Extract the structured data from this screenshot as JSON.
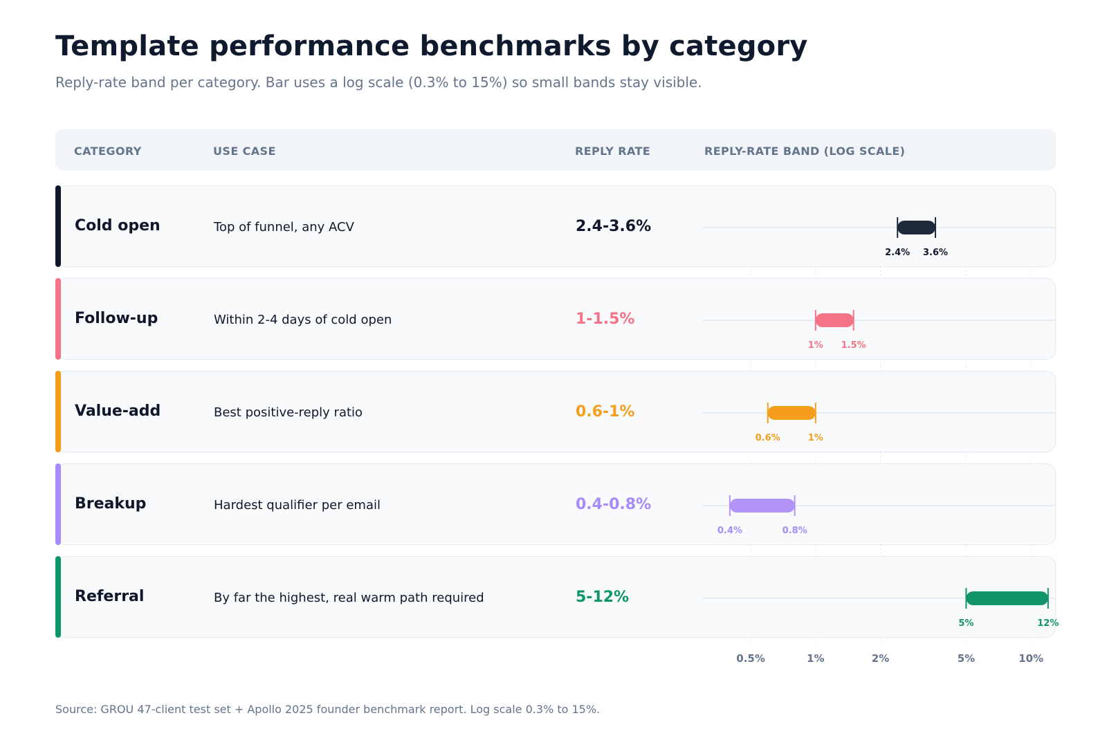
{
  "title": "Template performance benchmarks by category",
  "subtitle": "Reply-rate band per category. Bar uses a log scale (0.3% to 15%) so small bands stay visible.",
  "columns": {
    "category": "CATEGORY",
    "use_case": "USE CASE",
    "reply_rate": "REPLY RATE",
    "band": "REPLY-RATE BAND (LOG SCALE)"
  },
  "rows": [
    {
      "category": "Cold open",
      "use_case": "Top of funnel, any ACV",
      "reply_rate": "2.4-3.6%",
      "color": "#0f172a",
      "rate_color": "#0f172a",
      "bar_color": "#1e293b",
      "low": 2.4,
      "high": 3.6,
      "low_label": "2.4%",
      "high_label": "3.6%"
    },
    {
      "category": "Follow-up",
      "use_case": "Within 2-4 days of cold open",
      "reply_rate": "1-1.5%",
      "color": "#f47386",
      "rate_color": "#f47386",
      "bar_color": "#f47386",
      "low": 1,
      "high": 1.5,
      "low_label": "1%",
      "high_label": "1.5%"
    },
    {
      "category": "Value-add",
      "use_case": "Best positive-reply ratio",
      "reply_rate": "0.6-1%",
      "color": "#f59e1b",
      "rate_color": "#f59e1b",
      "bar_color": "#f59e1b",
      "low": 0.6,
      "high": 1,
      "low_label": "0.6%",
      "high_label": "1%"
    },
    {
      "category": "Breakup",
      "use_case": "Hardest qualifier per email",
      "reply_rate": "0.4-0.8%",
      "color": "#a78bfa",
      "rate_color": "#a78bfa",
      "bar_color": "#b294f9",
      "low": 0.4,
      "high": 0.8,
      "low_label": "0.4%",
      "high_label": "0.8%"
    },
    {
      "category": "Referral",
      "use_case": "By far the highest, real warm path required",
      "reply_rate": "5-12%",
      "color": "#10956a",
      "rate_color": "#10956a",
      "bar_color": "#10956a",
      "low": 5,
      "high": 12,
      "low_label": "5%",
      "high_label": "12%"
    }
  ],
  "chart_data": {
    "type": "bar",
    "title": "Template performance benchmarks by category",
    "subtitle": "Reply-rate band per category. Bar uses a log scale (0.3% to 15%) so small bands stay visible.",
    "xlabel": "REPLY-RATE BAND (LOG SCALE)",
    "scale": "log",
    "xlim": [
      0.3,
      15
    ],
    "ticks": [
      0.5,
      1,
      2,
      5,
      10
    ],
    "tick_labels": [
      "0.5%",
      "1%",
      "2%",
      "5%",
      "10%"
    ],
    "categories": [
      "Cold open",
      "Follow-up",
      "Value-add",
      "Breakup",
      "Referral"
    ],
    "series": [
      {
        "name": "low",
        "values": [
          2.4,
          1,
          0.6,
          0.4,
          5
        ]
      },
      {
        "name": "high",
        "values": [
          3.6,
          1.5,
          1,
          0.8,
          12
        ]
      }
    ],
    "grid": true
  },
  "footer": "Source: GROU 47-client test set + Apollo 2025 founder benchmark report. Log scale 0.3% to 15%."
}
